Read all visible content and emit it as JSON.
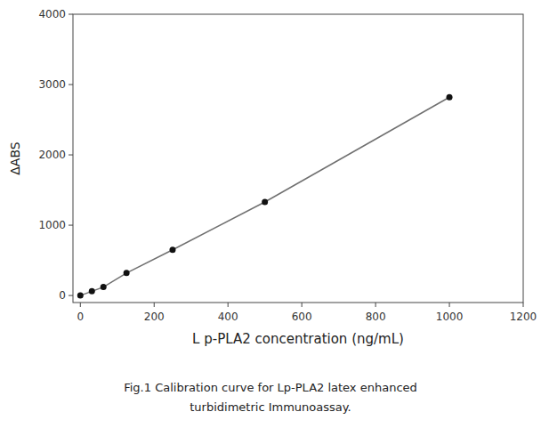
{
  "chart_data": {
    "type": "line",
    "x": [
      0,
      31.25,
      62.5,
      125,
      250,
      500,
      1000
    ],
    "values": [
      0,
      60,
      120,
      320,
      650,
      1330,
      2820
    ],
    "color": "#111111",
    "marker": "circle",
    "xlabel": "L p-PLA2 concentration (ng/mL)",
    "ylabel": "ΔABS",
    "xlim": [
      -20,
      1200
    ],
    "ylim": [
      -100,
      4000
    ],
    "xticks": [
      0,
      200,
      400,
      600,
      800,
      1000,
      1200
    ],
    "yticks": [
      0,
      1000,
      2000,
      3000,
      4000
    ],
    "grid": false,
    "caption": [
      "Fig.1 Calibration curve for Lp-PLA2 latex enhanced",
      "turbidimetric Immunoassay."
    ]
  }
}
